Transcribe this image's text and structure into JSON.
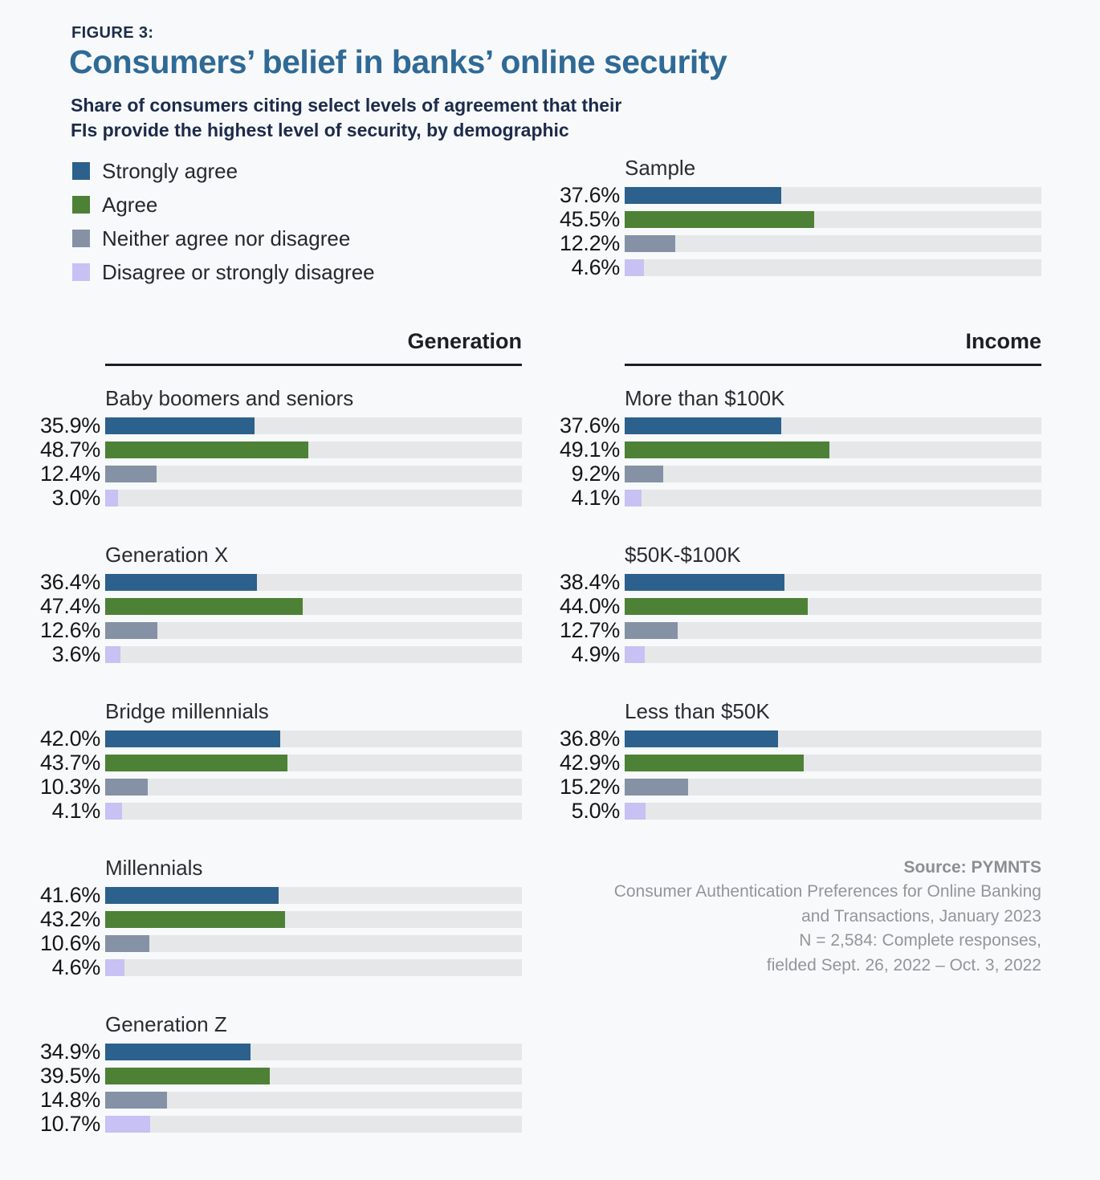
{
  "figure": {
    "kicker": "FIGURE 3:",
    "title": "Consumers’ belief in banks’ online security",
    "subtitle_lines": [
      "Share of consumers citing select levels of agreement that their",
      "FIs provide the highest level of security, by demographic"
    ]
  },
  "colors": {
    "background": "#f8f9fb",
    "track": "#e6e7e9",
    "title_blue": "#2f6a96",
    "navy": "#1c2b4a",
    "strongly_agree": "#2b618c",
    "agree": "#4d8136",
    "neither": "#8591a4",
    "disagree": "#c7c1f4"
  },
  "chart_data": {
    "type": "bar",
    "orientation": "horizontal",
    "unit": "percent",
    "xlim": [
      0,
      100
    ],
    "grid": false,
    "legend_position": "top-left",
    "categories": [
      "Strongly agree",
      "Agree",
      "Neither agree nor disagree",
      "Disagree or strongly disagree"
    ],
    "category_colors": [
      "#2b618c",
      "#4d8136",
      "#8591a4",
      "#c7c1f4"
    ],
    "sample": {
      "label": "Sample",
      "values": [
        37.6,
        45.5,
        12.2,
        4.6
      ]
    },
    "sections": [
      {
        "title": "Generation",
        "charts": [
          {
            "label": "Baby boomers and seniors",
            "values": [
              35.9,
              48.7,
              12.4,
              3.0
            ]
          },
          {
            "label": "Generation X",
            "values": [
              36.4,
              47.4,
              12.6,
              3.6
            ]
          },
          {
            "label": "Bridge millennials",
            "values": [
              42.0,
              43.7,
              10.3,
              4.1
            ]
          },
          {
            "label": "Millennials",
            "values": [
              41.6,
              43.2,
              10.6,
              4.6
            ]
          },
          {
            "label": "Generation Z",
            "values": [
              34.9,
              39.5,
              14.8,
              10.7
            ]
          }
        ]
      },
      {
        "title": "Income",
        "charts": [
          {
            "label": "More than $100K",
            "values": [
              37.6,
              49.1,
              9.2,
              4.1
            ]
          },
          {
            "label": "$50K-$100K",
            "values": [
              38.4,
              44.0,
              12.7,
              4.9
            ]
          },
          {
            "label": "Less than $50K",
            "values": [
              36.8,
              42.9,
              15.2,
              5.0
            ]
          }
        ]
      }
    ]
  },
  "source": {
    "lines": [
      "Source: PYMNTS",
      "Consumer Authentication Preferences for Online Banking",
      "and Transactions, January 2023",
      "N = 2,584: Complete responses,",
      "fielded Sept. 26, 2022 – Oct. 3, 2022"
    ]
  }
}
